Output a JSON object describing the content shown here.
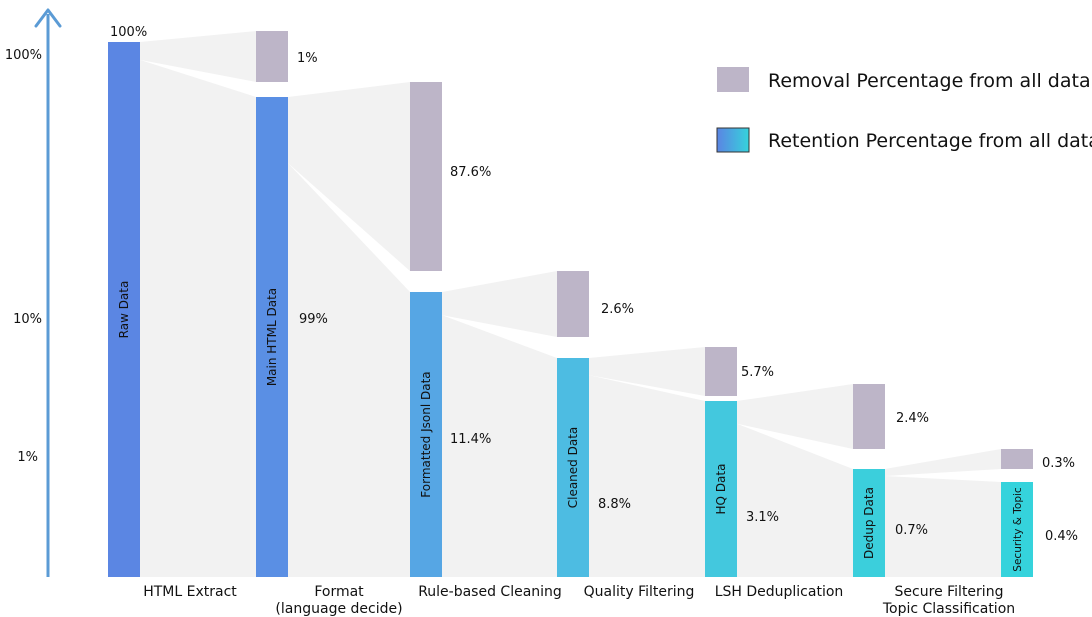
{
  "chart_data": {
    "type": "bar",
    "y_axis": {
      "ticks": [
        "100%",
        "10%",
        "1%"
      ]
    },
    "legend": {
      "placement": "top-right",
      "items": [
        {
          "label": "Removal Percentage from all data",
          "color": "#bdb5c8"
        },
        {
          "label": "Retention Percentage from all data",
          "gradient": [
            "#5b84e3",
            "#35d3dc"
          ]
        }
      ]
    },
    "stages": [
      {
        "label": "HTML Extract",
        "bar_label": "Raw Data",
        "retention_label": "100%",
        "retention_color": "#5b86e3"
      },
      {
        "label": "Format",
        "label2": "(language decide)",
        "bar_label": "Main HTML Data",
        "retention_label": "99%",
        "removal_label": "1%",
        "retention_color": "#5a8fe4"
      },
      {
        "label": "Rule-based Cleaning",
        "bar_label": "Formatted Jsonl Data",
        "retention_label": "11.4%",
        "removal_label": "87.6%",
        "retention_color": "#56a6e4"
      },
      {
        "label": "Quality Filtering",
        "bar_label": "Cleaned Data",
        "retention_label": "8.8%",
        "removal_label": "2.6%",
        "retention_color": "#4dbce2"
      },
      {
        "label": "LSH Deduplication",
        "bar_label": "HQ Data",
        "retention_label": "3.1%",
        "removal_label": "5.7%",
        "retention_color": "#43c8de"
      },
      {
        "label": "Secure Filtering",
        "label2": "Topic Classification",
        "bar_label": "Dedup Data",
        "retention_label": "0.7%",
        "removal_label": "2.4%",
        "retention_color": "#3bcfdc"
      },
      {
        "label": "",
        "bar_label": "Security & Topic",
        "retention_label": "0.4%",
        "removal_label": "0.3%",
        "retention_color": "#35d3dc"
      }
    ],
    "removal_color": "#bdb5c8",
    "flow_color": "#f2f2f2",
    "axis_color": "#5b9bd5"
  }
}
